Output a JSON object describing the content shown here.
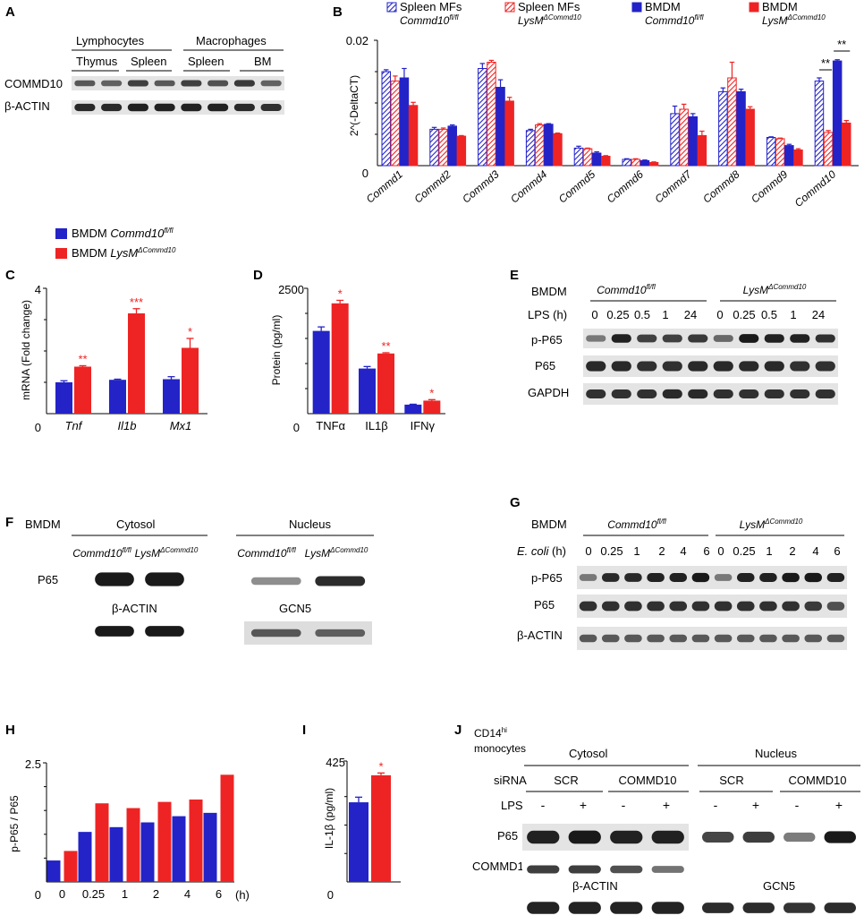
{
  "panels": {
    "A": {
      "letter": "A",
      "group_labels": [
        "Lymphocytes",
        "Macrophages"
      ],
      "lane_labels": [
        "Thymus",
        "Spleen",
        "Spleen",
        "BM"
      ],
      "row_labels": [
        "COMMD10",
        "β-ACTIN"
      ]
    },
    "B": {
      "letter": "B",
      "legend": [
        {
          "line1": "Spleen MFs",
          "line2": "Commd10",
          "sup": "fl/fl",
          "color": "#2323c8",
          "hatch": true
        },
        {
          "line1": "Spleen MFs",
          "line2": "LysM",
          "sup": "ΔCommd10",
          "color": "#ee2424",
          "hatch": true
        },
        {
          "line1": "BMDM",
          "line2": "Commd10",
          "sup": "fl/fl",
          "color": "#2323c8",
          "hatch": false
        },
        {
          "line1": "BMDM",
          "line2": "LysM",
          "sup": "ΔCommd10",
          "color": "#ee2424",
          "hatch": false
        }
      ],
      "ylabel": "2^(-DeltaCT)",
      "yticks": [
        "0.02",
        "0"
      ],
      "significance": [
        "**",
        "**"
      ]
    },
    "C": {
      "letter": "C",
      "ylabel": "mRNA (Fold change)",
      "yticks": [
        "4",
        "0"
      ],
      "legend": [
        {
          "text": "BMDM ",
          "italic": "Commd10",
          "sup": "fl/fl",
          "color": "#2323c8"
        },
        {
          "text": "BMDM ",
          "italic": "LysM",
          "sup": "ΔCommd10",
          "color": "#ee2424"
        }
      ],
      "significance": [
        "**",
        "***",
        "*"
      ]
    },
    "D": {
      "letter": "D",
      "ylabel": "Protein (pg/ml)",
      "yticks": [
        "2500",
        "0"
      ],
      "significance": [
        "*",
        "**",
        "*"
      ]
    },
    "E": {
      "letter": "E",
      "cell": "BMDM",
      "groups": [
        {
          "italic": "Commd10",
          "sup": "fl/fl"
        },
        {
          "italic": "LysM",
          "sup": "ΔCommd10"
        }
      ],
      "time_label": "LPS (h)",
      "times": [
        "0",
        "0.25",
        "0.5",
        "1",
        "24",
        "0",
        "0.25",
        "0.5",
        "1",
        "24"
      ],
      "row_labels": [
        "p-P65",
        "P65",
        "GAPDH"
      ]
    },
    "F": {
      "letter": "F",
      "cell": "BMDM",
      "fractions": [
        "Cytosol",
        "Nucleus"
      ],
      "genotypes": [
        {
          "italic": "Commd10",
          "sup": "fl/fl"
        },
        {
          "italic": "LysM",
          "sup": "ΔCommd10"
        }
      ],
      "row_label": "P65",
      "loading": [
        "β-ACTIN",
        "GCN5"
      ]
    },
    "G": {
      "letter": "G",
      "cell": "BMDM",
      "groups": [
        {
          "italic": "Commd10",
          "sup": "fl/fl"
        },
        {
          "italic": "LysM",
          "sup": "ΔCommd10"
        }
      ],
      "time_label_italic": "E. coli",
      "time_label_rest": " (h)",
      "times": [
        "0",
        "0.25",
        "1",
        "2",
        "4",
        "6",
        "0",
        "0.25",
        "1",
        "2",
        "4",
        "6"
      ],
      "row_labels": [
        "p-P65",
        "P65",
        "β-ACTIN"
      ]
    },
    "H": {
      "letter": "H",
      "ylabel": "p-P65 / P65",
      "yticks": [
        "2.5",
        "0"
      ],
      "xunit": "(h)"
    },
    "I": {
      "letter": "I",
      "ylabel": "IL-1β (pg/ml)",
      "yticks": [
        "425",
        "0"
      ],
      "significance": [
        "*"
      ]
    },
    "J": {
      "letter": "J",
      "cell_line1": "CD14",
      "cell_sup": "hi",
      "cell_line2": "monocytes",
      "fractions": [
        "Cytosol",
        "Nucleus"
      ],
      "sirna_label": "siRNA",
      "sirna": [
        "SCR",
        "COMMD10",
        "SCR",
        "COMMD10"
      ],
      "lps_label": "LPS",
      "lps": [
        "-",
        "+",
        "-",
        "+",
        "-",
        "+",
        "-",
        "+"
      ],
      "row_labels": [
        "P65",
        "COMMD10"
      ],
      "loading": [
        "β-ACTIN",
        "GCN5"
      ]
    }
  },
  "chart_data": [
    {
      "panel": "B",
      "type": "bar",
      "categories": [
        "Commd1",
        "Commd2",
        "Commd3",
        "Commd4",
        "Commd5",
        "Commd6",
        "Commd7",
        "Commd8",
        "Commd9",
        "Commd10"
      ],
      "ylim": [
        0,
        0.02
      ],
      "ylabel": "2^(-DeltaCT)",
      "series": [
        {
          "name": "Spleen MFs Commd10fl/fl",
          "values": [
            0.015,
            0.0058,
            0.0155,
            0.0056,
            0.0028,
            0.001,
            0.0083,
            0.0118,
            0.0045,
            0.0135
          ],
          "errors": [
            0.0003,
            0.0003,
            0.0008,
            0.0002,
            0.0003,
            0.0001,
            0.0012,
            0.0006,
            0.0001,
            0.0005
          ]
        },
        {
          "name": "Spleen MFs LysMΔCommd10",
          "values": [
            0.0135,
            0.0058,
            0.0165,
            0.0065,
            0.0027,
            0.001,
            0.009,
            0.014,
            0.0043,
            0.0053
          ],
          "errors": [
            0.0008,
            0.0002,
            0.0003,
            0.0002,
            0.0001,
            0.0001,
            0.0008,
            0.0025,
            0.0001,
            0.0003
          ]
        },
        {
          "name": "BMDM Commd10fl/fl",
          "values": [
            0.014,
            0.0063,
            0.0125,
            0.0066,
            0.002,
            0.0008,
            0.0078,
            0.0118,
            0.0032,
            0.0167
          ],
          "errors": [
            0.0015,
            0.0002,
            0.0012,
            0.0001,
            0.0002,
            0.0001,
            0.0005,
            0.0004,
            0.0002,
            0.0002
          ]
        },
        {
          "name": "BMDM LysMΔCommd10",
          "values": [
            0.0096,
            0.0047,
            0.0103,
            0.0051,
            0.0015,
            0.0005,
            0.0048,
            0.009,
            0.0025,
            0.0068
          ],
          "errors": [
            0.0005,
            0.0001,
            0.0006,
            0.0001,
            0.0001,
            0.0001,
            0.0007,
            0.0004,
            0.0002,
            0.0004
          ]
        }
      ]
    },
    {
      "panel": "C",
      "type": "bar",
      "categories": [
        "Tnf",
        "Il1b",
        "Mx1"
      ],
      "ylim": [
        0,
        4
      ],
      "ylabel": "mRNA (Fold change)",
      "series": [
        {
          "name": "BMDM Commd10fl/fl",
          "values": [
            1.0,
            1.08,
            1.1
          ],
          "errors": [
            0.05,
            0.02,
            0.08
          ]
        },
        {
          "name": "BMDM LysMΔCommd10",
          "values": [
            1.5,
            3.2,
            2.1
          ],
          "errors": [
            0.03,
            0.15,
            0.3
          ]
        }
      ]
    },
    {
      "panel": "D",
      "type": "bar",
      "categories": [
        "TNFα",
        "IL1β",
        "IFNγ"
      ],
      "ylim": [
        0,
        2500
      ],
      "ylabel": "Protein (pg/ml)",
      "series": [
        {
          "name": "BMDM Commd10fl/fl",
          "values": [
            1650,
            900,
            180
          ],
          "errors": [
            80,
            40,
            8
          ]
        },
        {
          "name": "BMDM LysMΔCommd10",
          "values": [
            2200,
            1200,
            260
          ],
          "errors": [
            60,
            15,
            20
          ]
        }
      ]
    },
    {
      "panel": "H",
      "type": "bar",
      "categories": [
        "0",
        "0.25",
        "1",
        "2",
        "4",
        "6"
      ],
      "ylim": [
        0,
        2.5
      ],
      "ylabel": "p-P65 / P65",
      "series": [
        {
          "name": "Commd10fl/fl",
          "values": [
            0.45,
            1.05,
            1.15,
            1.25,
            1.38,
            1.45
          ]
        },
        {
          "name": "LysMΔCommd10",
          "values": [
            0.65,
            1.65,
            1.55,
            1.68,
            1.73,
            2.25
          ]
        }
      ]
    },
    {
      "panel": "I",
      "type": "bar",
      "categories": [
        "Commd10fl/fl",
        "LysMΔCommd10"
      ],
      "ylim": [
        0,
        425
      ],
      "ylabel": "IL-1β (pg/ml)",
      "series": [
        {
          "name": "IL-1β",
          "values": [
            280,
            375
          ],
          "errors": [
            18,
            8
          ]
        }
      ],
      "significance": "*"
    }
  ]
}
